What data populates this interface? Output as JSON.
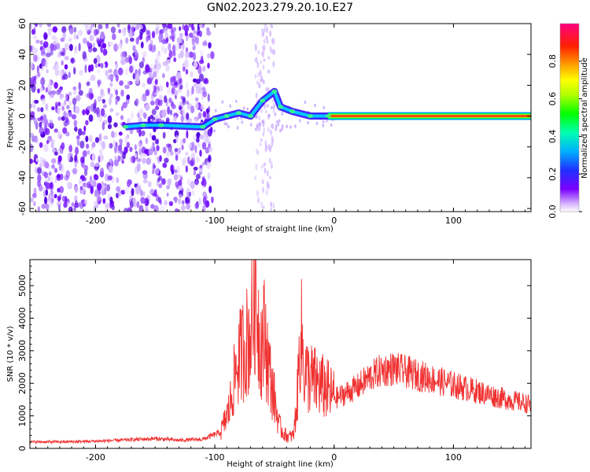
{
  "title": "GN02.2023.279.20.10.E27",
  "chart_data": [
    {
      "type": "heatmap",
      "xlabel": "Height of straight line (km)",
      "ylabel": "Frequency (Hz)",
      "xlim": [
        -255,
        165
      ],
      "ylim": [
        -62,
        60
      ],
      "x_ticks": [
        -200,
        -100,
        0,
        100
      ],
      "y_ticks": [
        -60,
        -40,
        -20,
        0,
        20,
        40,
        60
      ],
      "colorbar": {
        "label": "Normalized spectral amplitude",
        "range": [
          0,
          1
        ],
        "ticks": [
          0.0,
          0.2,
          0.4,
          0.6,
          0.8
        ]
      },
      "features": {
        "broadband_noise_x_range": [
          -255,
          -102
        ],
        "spectral_track": [
          {
            "x": -175,
            "y": -7
          },
          {
            "x": -160,
            "y": -6
          },
          {
            "x": -145,
            "y": -6
          },
          {
            "x": -110,
            "y": -7
          },
          {
            "x": -100,
            "y": -2
          },
          {
            "x": -90,
            "y": 0
          },
          {
            "x": -80,
            "y": 2
          },
          {
            "x": -70,
            "y": 0
          },
          {
            "x": -60,
            "y": 10
          },
          {
            "x": -50,
            "y": 16
          },
          {
            "x": -45,
            "y": 6
          },
          {
            "x": -35,
            "y": 3
          },
          {
            "x": -20,
            "y": 0
          },
          {
            "x": -5,
            "y": 0
          },
          {
            "x": 50,
            "y": 0
          },
          {
            "x": 100,
            "y": 0
          },
          {
            "x": 165,
            "y": 0
          }
        ]
      }
    },
    {
      "type": "line",
      "xlabel": "Height of straight line (km)",
      "ylabel": "SNR (10 * v/v)",
      "xlim": [
        -255,
        165
      ],
      "ylim": [
        0,
        5800
      ],
      "x_ticks": [
        -200,
        -100,
        0,
        100
      ],
      "y_ticks": [
        0,
        1000,
        2000,
        3000,
        4000,
        5000
      ],
      "color": "#f03030",
      "series": [
        {
          "x": [
            -255,
            -230,
            -200,
            -180,
            -150,
            -130,
            -110,
            -95,
            -88,
            -82,
            -76,
            -70,
            -66,
            -62,
            -58,
            -54,
            -50,
            -46,
            -42,
            -38,
            -34,
            -31,
            -28,
            -25,
            -22,
            -18,
            -14,
            -10,
            -6,
            -2,
            2,
            10,
            20,
            30,
            40,
            50,
            60,
            80,
            100,
            120,
            140,
            165
          ],
          "values": [
            200,
            200,
            220,
            250,
            300,
            250,
            280,
            500,
            1200,
            2500,
            3100,
            3500,
            5000,
            3200,
            3500,
            2300,
            1500,
            700,
            450,
            350,
            400,
            1500,
            3700,
            2400,
            2200,
            2100,
            2000,
            1900,
            1800,
            1650,
            1550,
            1700,
            1900,
            2200,
            2400,
            2450,
            2350,
            2150,
            1950,
            1750,
            1550,
            1350
          ]
        }
      ]
    }
  ]
}
